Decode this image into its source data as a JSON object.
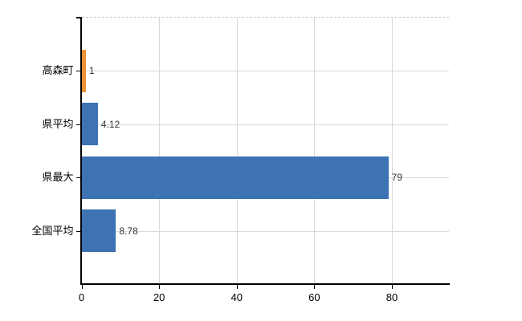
{
  "chart_data": {
    "type": "bar",
    "orientation": "horizontal",
    "title": "",
    "xlabel": "",
    "ylabel": "",
    "categories": [
      "高森町",
      "県平均",
      "県最大",
      "全国平均"
    ],
    "values": [
      1,
      4.12,
      79,
      8.78
    ],
    "value_labels": [
      "1",
      "4.12",
      "79",
      "8.78"
    ],
    "bar_colors": [
      "#EE9037",
      "#3D72B3",
      "#3D72B3",
      "#3D72B3"
    ],
    "xticks": [
      0,
      20,
      40,
      60,
      80
    ],
    "xtick_labels": [
      "0",
      "20",
      "40",
      "60",
      "80"
    ],
    "xlim": [
      0,
      95
    ],
    "grid": true,
    "legend": false,
    "colors": {
      "background": "#ffffff",
      "axis": "#000000",
      "gridline": "#d9d9d9",
      "top_border": "#c8c8c8",
      "category_label": "#000000",
      "value_label": "#333333",
      "tick_label": "#000000"
    }
  }
}
